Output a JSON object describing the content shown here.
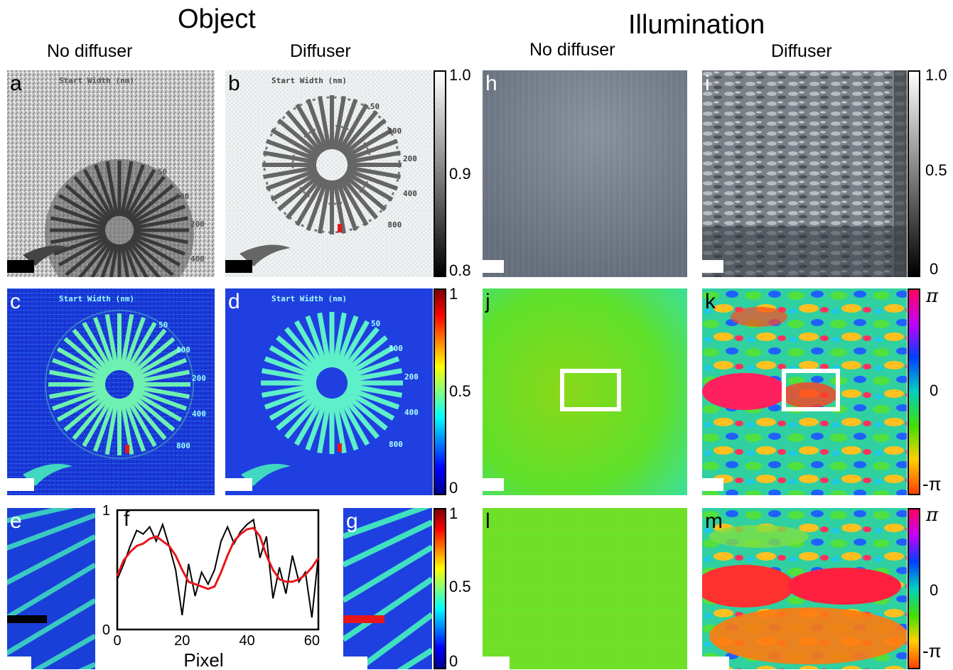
{
  "headers": {
    "object": "Object",
    "illumination": "Illumination",
    "obj_no_diffuser": "No diffuser",
    "obj_diffuser": "Diffuser",
    "ill_no_diffuser": "No diffuser",
    "ill_diffuser": "Diffuser"
  },
  "panel_labels": {
    "a": "a",
    "b": "b",
    "c": "c",
    "d": "d",
    "e": "e",
    "f": "f",
    "g": "g",
    "h": "h",
    "i": "i",
    "j": "j",
    "k": "k",
    "l": "l",
    "m": "m"
  },
  "star_target": {
    "title": "Start Width (nm)",
    "labels": [
      "50",
      "100",
      "200",
      "400",
      "800"
    ]
  },
  "colorbars": {
    "gray_object": {
      "max": "1.0",
      "mid": "0.9",
      "min": "0.8"
    },
    "jet_object": {
      "max": "1",
      "mid": "0.5",
      "min": "0"
    },
    "gray_illum": {
      "max": "1.0",
      "mid": "0.5",
      "min": "0"
    },
    "phase_k": {
      "max": "π",
      "mid": "0",
      "min": "-π"
    },
    "jet_g": {
      "max": "1",
      "mid": "0.5",
      "min": "0"
    },
    "phase_m": {
      "max": "π",
      "mid": "0",
      "min": "-π"
    }
  },
  "colors": {
    "line_no_diffuser": "#000000",
    "line_diffuser": "#e8161b",
    "scalebar_white": "#ffffff",
    "scalebar_black": "#000000",
    "scalebar_red": "#e8161b"
  },
  "chart_data": {
    "type": "line",
    "xlabel": "Pixel",
    "ylabel": "",
    "xlim": [
      0,
      62
    ],
    "ylim": [
      0,
      1
    ],
    "xticks": [
      "0",
      "20",
      "40",
      "60"
    ],
    "yticks": [
      "0",
      "1"
    ],
    "series": [
      {
        "color": "#000000",
        "x": [
          0,
          2,
          4,
          6,
          8,
          10,
          12,
          14,
          16,
          18,
          20,
          22,
          24,
          26,
          28,
          30,
          32,
          34,
          36,
          38,
          40,
          42,
          44,
          46,
          48,
          50,
          52,
          54,
          56,
          58,
          60,
          62
        ],
        "values": [
          0.42,
          0.55,
          0.7,
          0.83,
          0.8,
          0.86,
          0.74,
          0.88,
          0.7,
          0.5,
          0.12,
          0.55,
          0.28,
          0.48,
          0.38,
          0.5,
          0.74,
          0.86,
          0.72,
          0.82,
          0.88,
          0.92,
          0.6,
          0.78,
          0.26,
          0.52,
          0.3,
          0.62,
          0.4,
          0.48,
          0.1,
          0.62
        ]
      },
      {
        "color": "#e8161b",
        "x": [
          0,
          2,
          4,
          6,
          8,
          10,
          12,
          14,
          16,
          18,
          20,
          22,
          24,
          26,
          28,
          30,
          32,
          34,
          36,
          38,
          40,
          42,
          44,
          46,
          48,
          50,
          52,
          54,
          56,
          58,
          60,
          62
        ],
        "values": [
          0.45,
          0.58,
          0.65,
          0.7,
          0.72,
          0.76,
          0.78,
          0.74,
          0.7,
          0.62,
          0.5,
          0.4,
          0.38,
          0.36,
          0.34,
          0.36,
          0.48,
          0.62,
          0.74,
          0.8,
          0.84,
          0.85,
          0.78,
          0.62,
          0.5,
          0.42,
          0.4,
          0.4,
          0.42,
          0.46,
          0.52,
          0.6
        ]
      }
    ]
  }
}
